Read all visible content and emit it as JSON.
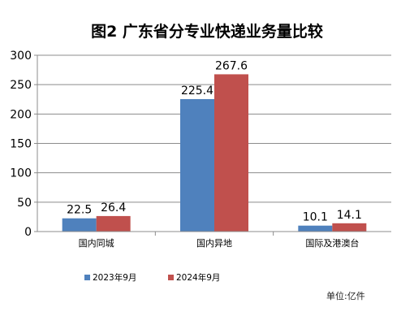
{
  "chart_data": {
    "type": "bar",
    "title": "图2 广东省分专业快递业务量比较",
    "categories": [
      "国内同城",
      "国内异地",
      "国际及港澳台"
    ],
    "series": [
      {
        "name": "2023年9月",
        "values": [
          22.5,
          225.4,
          10.1
        ],
        "color": "#4F81BD"
      },
      {
        "name": "2024年9月",
        "values": [
          26.4,
          267.6,
          14.1
        ],
        "color": "#C0504D"
      }
    ],
    "ylim": [
      0,
      300
    ],
    "yticks": [
      0,
      50,
      100,
      150,
      200,
      250,
      300
    ],
    "grid": true,
    "legend": "bottom",
    "unit_note": "单位:亿件"
  }
}
